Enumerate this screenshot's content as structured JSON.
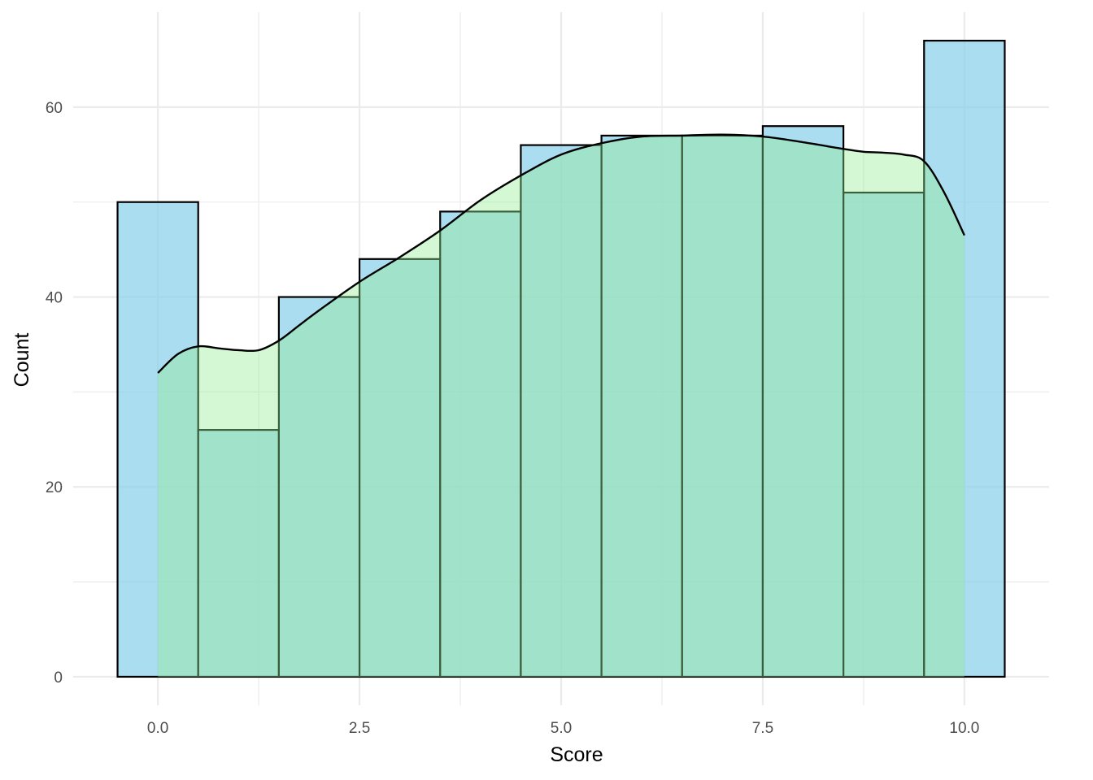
{
  "chart_data": {
    "type": "bar",
    "title": "",
    "xlabel": "Score",
    "ylabel": "Count",
    "xlim": [
      -1.05,
      11.05
    ],
    "ylim": [
      -3.0,
      70.0
    ],
    "x_ticks": [
      0.0,
      2.5,
      5.0,
      7.5,
      10.0
    ],
    "x_tick_labels": [
      "0.0",
      "2.5",
      "5.0",
      "7.5",
      "10.0"
    ],
    "y_ticks": [
      0,
      20,
      40,
      60
    ],
    "y_tick_labels": [
      "0",
      "20",
      "40",
      "60"
    ],
    "grid": true,
    "legend": "none",
    "bin_width": 1,
    "x": [
      0,
      1,
      2,
      3,
      4,
      5,
      6,
      7,
      8,
      9,
      10
    ],
    "series": [
      {
        "kind": "histogram",
        "values": [
          50,
          26,
          40,
          44,
          49,
          56,
          57,
          57,
          58,
          51,
          67
        ],
        "color": "#87CEEB"
      },
      {
        "kind": "density",
        "x": [
          0,
          0.25,
          0.5,
          0.75,
          1.0,
          1.25,
          1.5,
          1.75,
          2.0,
          2.5,
          3.0,
          3.5,
          4.0,
          4.5,
          5.0,
          5.5,
          6.0,
          6.5,
          7.0,
          7.5,
          8.0,
          8.5,
          8.75,
          9.0,
          9.25,
          9.5,
          9.75,
          10.0
        ],
        "values": [
          32.0,
          34.0,
          34.8,
          34.6,
          34.4,
          34.4,
          35.4,
          37.0,
          38.6,
          41.6,
          44.2,
          47.0,
          50.2,
          52.8,
          55.0,
          56.2,
          56.9,
          57.0,
          57.1,
          56.9,
          56.3,
          55.6,
          55.3,
          55.2,
          55.0,
          54.3,
          51.0,
          46.5
        ],
        "fill_color": "#90EE90",
        "line_color": "#000000"
      }
    ]
  }
}
